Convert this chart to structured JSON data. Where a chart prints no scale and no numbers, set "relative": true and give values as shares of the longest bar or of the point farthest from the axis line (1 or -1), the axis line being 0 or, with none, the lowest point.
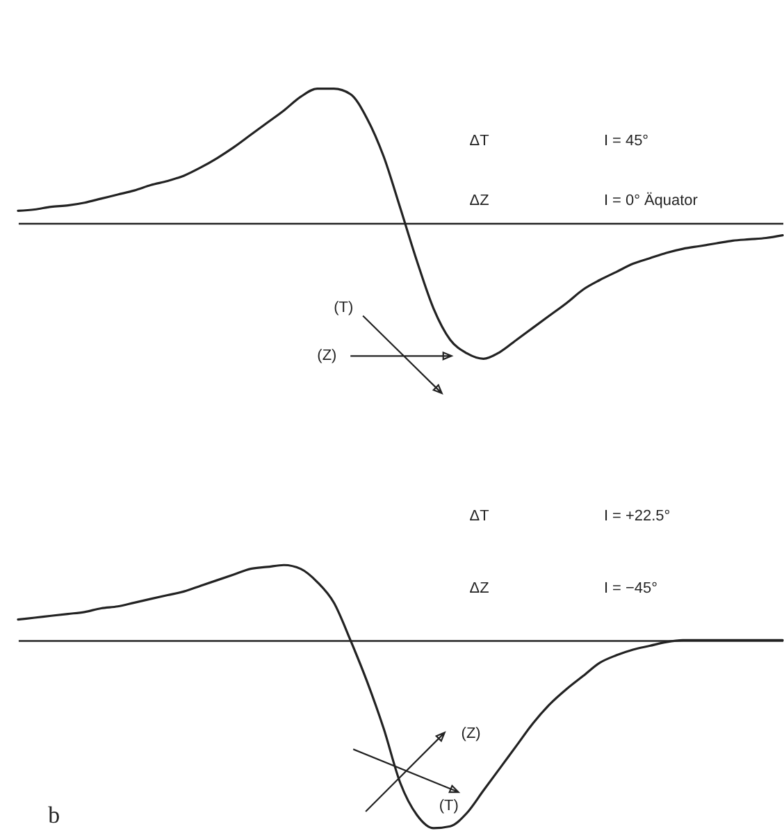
{
  "chart_data": [
    {
      "type": "line",
      "relative": true,
      "categories": [
        null,
        null,
        null,
        null,
        null,
        null,
        null,
        null,
        null,
        null,
        null,
        null,
        null,
        null,
        null,
        null,
        null,
        null,
        null,
        null,
        null,
        null,
        null,
        null,
        null,
        null,
        null,
        null,
        null,
        null,
        null,
        null,
        null,
        null,
        null,
        null,
        null,
        null,
        null,
        null,
        null,
        null,
        null,
        null,
        null,
        null,
        null
      ],
      "series": [
        {
          "color": "#222222",
          "values": [
            0.09,
            0.1,
            0.12,
            0.13,
            0.15,
            0.18,
            0.21,
            0.24,
            0.28,
            0.31,
            0.35,
            0.41,
            0.48,
            0.56,
            0.65,
            0.74,
            0.83,
            0.93,
            0.99,
            0.99,
            0.95,
            0.77,
            0.49,
            0.11,
            -0.28,
            -0.63,
            -0.86,
            -0.96,
            -1,
            -0.95,
            -0.86,
            -0.77,
            -0.68,
            -0.59,
            -0.49,
            -0.42,
            -0.36,
            -0.3,
            -0.26,
            -0.22,
            -0.19,
            -0.17,
            -0.15,
            -0.13,
            -0.12,
            -0.11,
            -0.09
          ]
        }
      ],
      "line_style": "solid",
      "tick_labels": false,
      "annotations": [
        "ΔT",
        "I = 45°",
        "ΔZ",
        "I = 0° Äquator",
        "(T)",
        "(Z)"
      ]
    },
    {
      "type": "line",
      "relative": true,
      "title": "b",
      "categories": [
        null,
        null,
        null,
        null,
        null,
        null,
        null,
        null,
        null,
        null,
        null,
        null,
        null,
        null,
        null,
        null,
        null,
        null,
        null,
        null,
        null,
        null,
        null,
        null,
        null,
        null,
        null,
        null,
        null,
        null,
        null,
        null,
        null,
        null,
        null,
        null,
        null,
        null,
        null,
        null,
        null,
        null,
        null,
        null,
        null,
        null,
        null
      ],
      "series": [
        {
          "color": "#222222",
          "values": [
            0.11,
            0.12,
            0.13,
            0.14,
            0.15,
            0.17,
            0.18,
            0.2,
            0.22,
            0.24,
            0.26,
            0.29,
            0.32,
            0.35,
            0.38,
            0.39,
            0.4,
            0.38,
            0.31,
            0.2,
            0,
            -0.22,
            -0.47,
            -0.76,
            -0.93,
            -1,
            -0.99,
            -0.92,
            -0.8,
            -0.68,
            -0.56,
            -0.44,
            -0.34,
            -0.26,
            -0.19,
            -0.12,
            -0.08,
            -0.05,
            -0.03,
            -0.01,
            0,
            0,
            0,
            0,
            0,
            0,
            0
          ]
        }
      ],
      "line_style": "solid",
      "tick_labels": false,
      "annotations": [
        "ΔT",
        "I = +22.5°",
        "ΔZ",
        "I = −45°",
        "(Z)",
        "(T)"
      ]
    }
  ]
}
